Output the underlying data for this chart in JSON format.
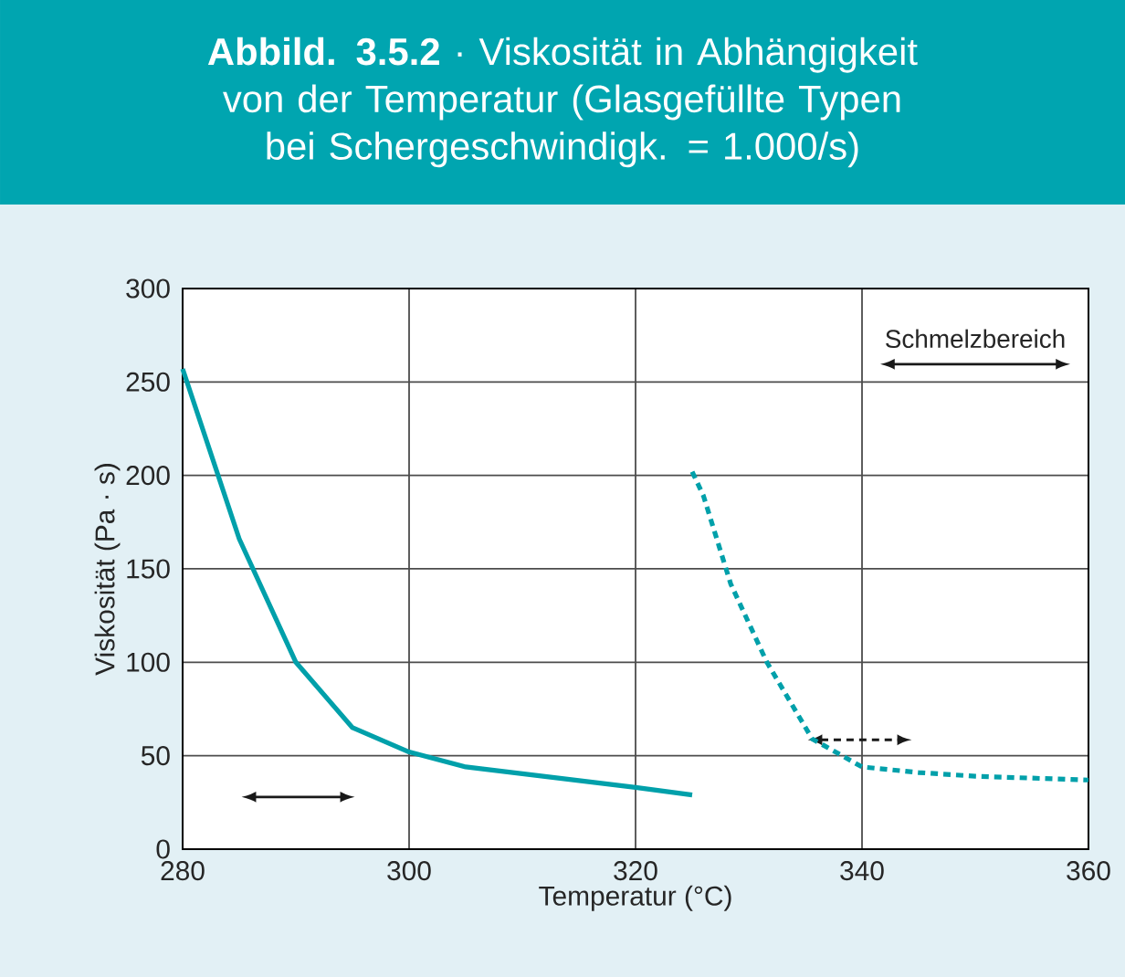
{
  "chart_data": {
    "type": "line",
    "title": "**Abbild. 3.5.2** · Viskosität in Abhängigkeit von der Temperatur (Glasgefüllte Typen bei Schergeschwindigk. = 1.000/s)",
    "xlabel": "Temperatur (°C)",
    "ylabel": "Viskosität (Pa · s)",
    "series": [
      {
        "color": "#00a0aa",
        "line_style": "solid",
        "x": [
          280,
          285,
          290,
          295,
          300,
          305,
          320,
          325
        ],
        "values": [
          257,
          166,
          100,
          65,
          52,
          44,
          33,
          29
        ]
      },
      {
        "color": "#00a0aa",
        "line_style": "dashed",
        "x": [
          325,
          326,
          328.4,
          331.6,
          335.6,
          340,
          345,
          350,
          360
        ],
        "values": [
          202,
          189,
          142,
          100,
          59,
          44,
          41,
          39,
          37
        ]
      }
    ],
    "annotations": [
      "Schmelzbereich"
    ],
    "xlim": [
      280,
      360
    ],
    "xticks": [
      280,
      300,
      320,
      340,
      360
    ],
    "ylim": [
      0,
      300
    ],
    "yticks": [
      0,
      50,
      100,
      150,
      200,
      250,
      300
    ],
    "grid": true,
    "marker": "none"
  }
}
